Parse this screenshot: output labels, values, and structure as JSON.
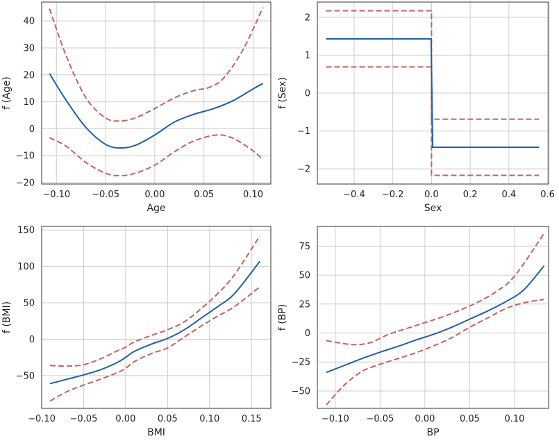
{
  "chart_data": [
    {
      "type": "line",
      "name": "age",
      "xlabel": "Age",
      "ylabel": "f (Age)",
      "xlim": [
        -0.115,
        0.118
      ],
      "ylim": [
        -20.5,
        47
      ],
      "xticks": [
        -0.1,
        -0.05,
        0.0,
        0.05,
        0.1
      ],
      "xtick_labels": [
        "−0.10",
        "−0.05",
        "0.00",
        "0.05",
        "0.10"
      ],
      "yticks": [
        -20,
        -10,
        0,
        10,
        20,
        30,
        40
      ],
      "ytick_labels": [
        "−20",
        "−10",
        "0",
        "10",
        "20",
        "30",
        "40"
      ],
      "series": [
        {
          "name": "fit",
          "color": "#1f5fa9",
          "style": "solid",
          "x": [
            -0.107,
            -0.09,
            -0.07,
            -0.05,
            -0.035,
            -0.02,
            0.0,
            0.02,
            0.04,
            0.06,
            0.08,
            0.1,
            0.11
          ],
          "y": [
            20.5,
            10.5,
            0.5,
            -5.8,
            -7.1,
            -6.2,
            -2.3,
            2.5,
            5.4,
            7.5,
            10.5,
            14.8,
            16.8
          ]
        },
        {
          "name": "upper",
          "color": "#c1625f",
          "style": "dashed",
          "x": [
            -0.107,
            -0.09,
            -0.07,
            -0.05,
            -0.035,
            -0.02,
            0.0,
            0.02,
            0.04,
            0.055,
            0.07,
            0.09,
            0.11
          ],
          "y": [
            44.5,
            27.0,
            11.5,
            4.0,
            2.9,
            4.0,
            7.5,
            11.5,
            14.2,
            15.3,
            18.8,
            29.5,
            45.0
          ]
        },
        {
          "name": "lower",
          "color": "#c1625f",
          "style": "dashed",
          "x": [
            -0.107,
            -0.09,
            -0.07,
            -0.05,
            -0.035,
            -0.02,
            0.0,
            0.02,
            0.04,
            0.063,
            0.08,
            0.1,
            0.11
          ],
          "y": [
            -3.3,
            -6.5,
            -12.5,
            -16.5,
            -17.4,
            -16.5,
            -13.5,
            -8.5,
            -4.5,
            -2.3,
            -3.6,
            -8.2,
            -11.5
          ]
        }
      ]
    },
    {
      "type": "line",
      "name": "sex",
      "xlabel": "Sex",
      "ylabel": "f (Sex)",
      "xlim": [
        -0.59,
        0.605
      ],
      "ylim": [
        -2.4,
        2.4
      ],
      "xticks": [
        -0.4,
        -0.2,
        0.0,
        0.2,
        0.4,
        0.6
      ],
      "xtick_labels": [
        "−0.4",
        "−0.2",
        "0.0",
        "0.2",
        "0.4",
        "0.6"
      ],
      "yticks": [
        -2,
        -1,
        0,
        1,
        2
      ],
      "ytick_labels": [
        "−2",
        "−1",
        "0",
        "1",
        "2"
      ],
      "series": [
        {
          "name": "fit",
          "color": "#1f5fa9",
          "style": "solid",
          "x": [
            -0.545,
            -0.002,
            0.006,
            0.556
          ],
          "y": [
            1.43,
            1.43,
            -1.43,
            -1.43
          ]
        },
        {
          "name": "upper",
          "color": "#c1625f",
          "style": "dashed",
          "x": [
            -0.545,
            0.0,
            0.0,
            0.556
          ],
          "y": [
            2.17,
            2.17,
            -0.69,
            -0.69
          ]
        },
        {
          "name": "lower",
          "color": "#c1625f",
          "style": "dashed",
          "x": [
            -0.545,
            0.0,
            0.0,
            0.556
          ],
          "y": [
            0.69,
            0.69,
            -2.17,
            -2.17
          ]
        }
      ]
    },
    {
      "type": "line",
      "name": "bmi",
      "xlabel": "BMI",
      "ylabel": "f (BMI)",
      "xlim": [
        -0.1,
        0.173
      ],
      "ylim": [
        -95,
        155
      ],
      "xticks": [
        -0.1,
        -0.05,
        0.0,
        0.05,
        0.1,
        0.15
      ],
      "xtick_labels": [
        "−0.10",
        "−0.05",
        "0.00",
        "0.05",
        "0.10",
        "0.15"
      ],
      "yticks": [
        -50,
        0,
        50,
        100,
        150
      ],
      "ytick_labels": [
        "−50",
        "0",
        "50",
        "100",
        "150"
      ],
      "series": [
        {
          "name": "fit",
          "color": "#1f5fa9",
          "style": "solid",
          "x": [
            -0.09,
            -0.07,
            -0.05,
            -0.03,
            -0.01,
            0.0,
            0.01,
            0.03,
            0.05,
            0.07,
            0.09,
            0.11,
            0.13,
            0.16
          ],
          "y": [
            -61,
            -55,
            -49,
            -42,
            -32,
            -25,
            -17,
            -7,
            1,
            13,
            29,
            45,
            63,
            107
          ]
        },
        {
          "name": "upper",
          "color": "#c1625f",
          "style": "dashed",
          "x": [
            -0.09,
            -0.07,
            -0.05,
            -0.03,
            -0.01,
            0.0,
            0.01,
            0.03,
            0.05,
            0.07,
            0.09,
            0.11,
            0.13,
            0.16
          ],
          "y": [
            -36,
            -37,
            -35,
            -27,
            -16,
            -11,
            -4,
            5,
            13,
            24,
            42,
            63,
            89,
            142
          ]
        },
        {
          "name": "lower",
          "color": "#c1625f",
          "style": "dashed",
          "x": [
            -0.09,
            -0.07,
            -0.05,
            -0.03,
            -0.01,
            0.0,
            0.01,
            0.03,
            0.05,
            0.07,
            0.09,
            0.11,
            0.13,
            0.16
          ],
          "y": [
            -85,
            -72,
            -63,
            -55,
            -46,
            -40,
            -31,
            -20,
            -12,
            3,
            18,
            32,
            45,
            72
          ]
        }
      ]
    },
    {
      "type": "line",
      "name": "bp",
      "xlabel": "BP",
      "ylabel": "f (BP)",
      "xlim": [
        -0.12,
        0.138
      ],
      "ylim": [
        -65,
        92
      ],
      "xticks": [
        -0.1,
        -0.05,
        0.0,
        0.05,
        0.1
      ],
      "xtick_labels": [
        "−0.10",
        "−0.05",
        "0.00",
        "0.05",
        "0.10"
      ],
      "yticks": [
        -50,
        -25,
        0,
        25,
        50,
        75
      ],
      "ytick_labels": [
        "−50",
        "−25",
        "0",
        "25",
        "50",
        "75"
      ],
      "series": [
        {
          "name": "fit",
          "color": "#1f5fa9",
          "style": "solid",
          "x": [
            -0.11,
            -0.09,
            -0.07,
            -0.05,
            -0.03,
            -0.01,
            0.01,
            0.03,
            0.05,
            0.07,
            0.09,
            0.11,
            0.133
          ],
          "y": [
            -34,
            -28,
            -22,
            -16.5,
            -11.5,
            -6,
            -1,
            5,
            12,
            19,
            27,
            37,
            58
          ]
        },
        {
          "name": "upper",
          "color": "#c1625f",
          "style": "dashed",
          "x": [
            -0.11,
            -0.09,
            -0.075,
            -0.06,
            -0.04,
            -0.02,
            0.0,
            0.02,
            0.04,
            0.06,
            0.08,
            0.1,
            0.133
          ],
          "y": [
            -6.5,
            -9.2,
            -10,
            -8,
            -1,
            4,
            9,
            14,
            20,
            27,
            36,
            49,
            86
          ]
        },
        {
          "name": "lower",
          "color": "#c1625f",
          "style": "dashed",
          "x": [
            -0.11,
            -0.09,
            -0.07,
            -0.05,
            -0.03,
            -0.01,
            0.01,
            0.03,
            0.05,
            0.07,
            0.09,
            0.11,
            0.133
          ],
          "y": [
            -62,
            -45,
            -33,
            -27,
            -22,
            -17,
            -11,
            -4,
            5,
            13,
            21,
            26,
            29
          ]
        }
      ]
    }
  ]
}
